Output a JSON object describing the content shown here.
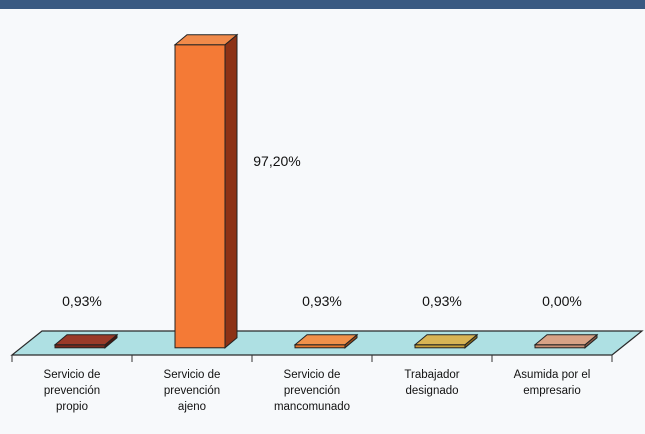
{
  "chart_data": {
    "type": "bar",
    "categories": [
      "Servicio de prevención propio",
      "Servicio de prevención ajeno",
      "Servicio de prevención mancomunado",
      "Trabajador designado",
      "Asumida por el empresario"
    ],
    "category_lines": [
      [
        "Servicio de",
        "prevención",
        "propio"
      ],
      [
        "Servicio de",
        "prevención",
        "ajeno"
      ],
      [
        "Servicio de",
        "prevención",
        "mancomunado"
      ],
      [
        "Trabajador",
        "designado"
      ],
      [
        "Asumida por el",
        "empresario"
      ]
    ],
    "values": [
      0.93,
      97.2,
      0.93,
      0.93,
      0.0
    ],
    "data_labels": [
      "0,93%",
      "97,20%",
      "0,93%",
      "0,93%",
      "0,00%"
    ],
    "colors": {
      "front": [
        "#7a2a1c",
        "#f47a36",
        "#e8782e",
        "#c9a23a",
        "#c98f74"
      ],
      "top": [
        "#9a3a28",
        "#f08a4a",
        "#f0904a",
        "#d8b454",
        "#d8a286"
      ],
      "side": [
        "#4a160e",
        "#8c3216",
        "#9a4818",
        "#8a6a1a",
        "#8a5a48"
      ]
    },
    "floor_color": "#aee0e3",
    "title": "",
    "xlabel": "",
    "ylabel": "",
    "ylim": [
      0,
      100
    ],
    "grid": false,
    "legend": "none"
  }
}
